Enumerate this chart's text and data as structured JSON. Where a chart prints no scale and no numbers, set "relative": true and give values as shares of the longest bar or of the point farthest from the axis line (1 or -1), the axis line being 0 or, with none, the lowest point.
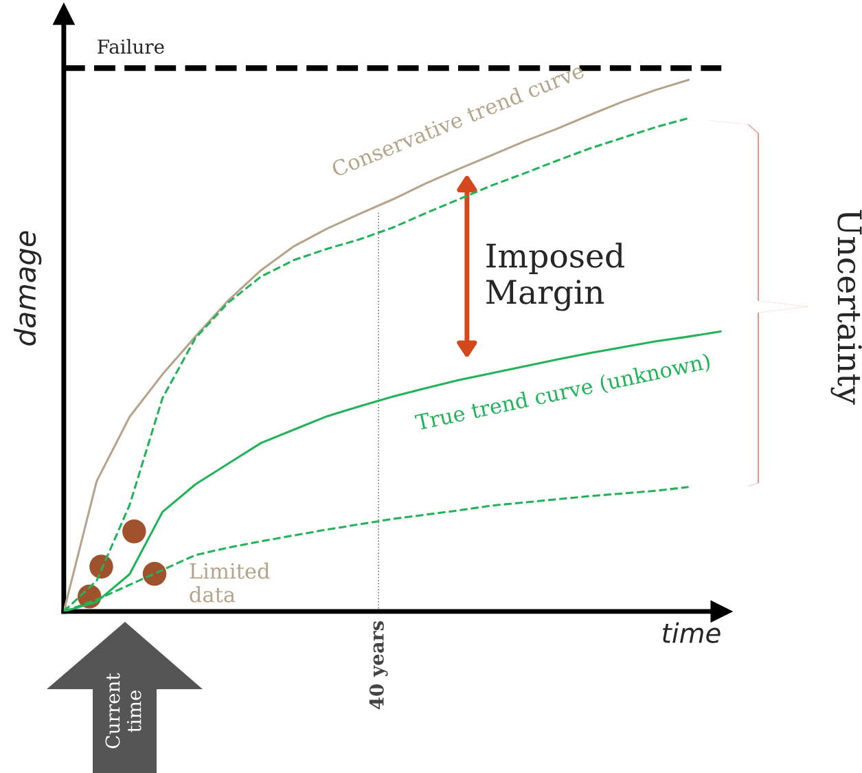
{
  "chart_data": {
    "type": "line",
    "relative": true,
    "xlabel": "time",
    "ylabel": "damage",
    "ylim": [
      0,
      1.124
    ],
    "categories": [
      null,
      null,
      null,
      null,
      null,
      null,
      null,
      null,
      null,
      null,
      null,
      null,
      null,
      null,
      null,
      null,
      null,
      null,
      null,
      null,
      null
    ],
    "series": [
      {
        "name": "Conservative trend curve",
        "color": "#b5a48a",
        "line_style": "solid",
        "values": [
          0,
          0.245,
          0.366,
          0.446,
          0.517,
          0.585,
          0.642,
          0.687,
          0.72,
          0.748,
          0.775,
          0.805,
          0.832,
          0.858,
          0.884,
          0.908,
          0.934,
          0.959,
          0.981,
          1,
          null
        ]
      },
      {
        "color": "#22b35a",
        "line_style": "dashed",
        "values": [
          0,
          0.058,
          0.2,
          0.401,
          0.514,
          0.581,
          0.63,
          0.661,
          0.682,
          0.7,
          0.722,
          0.749,
          0.775,
          0.801,
          0.824,
          0.848,
          0.871,
          0.891,
          0.911,
          0.928,
          null
        ]
      },
      {
        "name": "True trend curve (unknown)",
        "color": "#22b35a",
        "line_style": "solid",
        "values": [
          0,
          0.018,
          0.07,
          0.187,
          0.239,
          0.278,
          0.317,
          0.342,
          0.367,
          0.386,
          0.404,
          0.42,
          0.435,
          0.448,
          0.461,
          0.474,
          0.486,
          0.497,
          0.508,
          0.517,
          0.527
        ]
      },
      {
        "color": "#22b35a",
        "line_style": "dashed",
        "values": [
          0,
          0.022,
          0.05,
          0.078,
          0.106,
          0.12,
          0.132,
          0.143,
          0.154,
          0.164,
          0.174,
          0.182,
          0.19,
          0.199,
          0.205,
          0.211,
          0.217,
          0.222,
          0.227,
          0.234,
          null
        ]
      }
    ],
    "ref_lines": [
      {
        "axis": "y",
        "value": 1.022,
        "label": "Failure",
        "color": "#000000",
        "line_style": "dashed"
      }
    ],
    "annotations": [
      "Imposed Margin",
      "Uncertainty",
      "Current time",
      "Limited data",
      "40 years"
    ]
  }
}
